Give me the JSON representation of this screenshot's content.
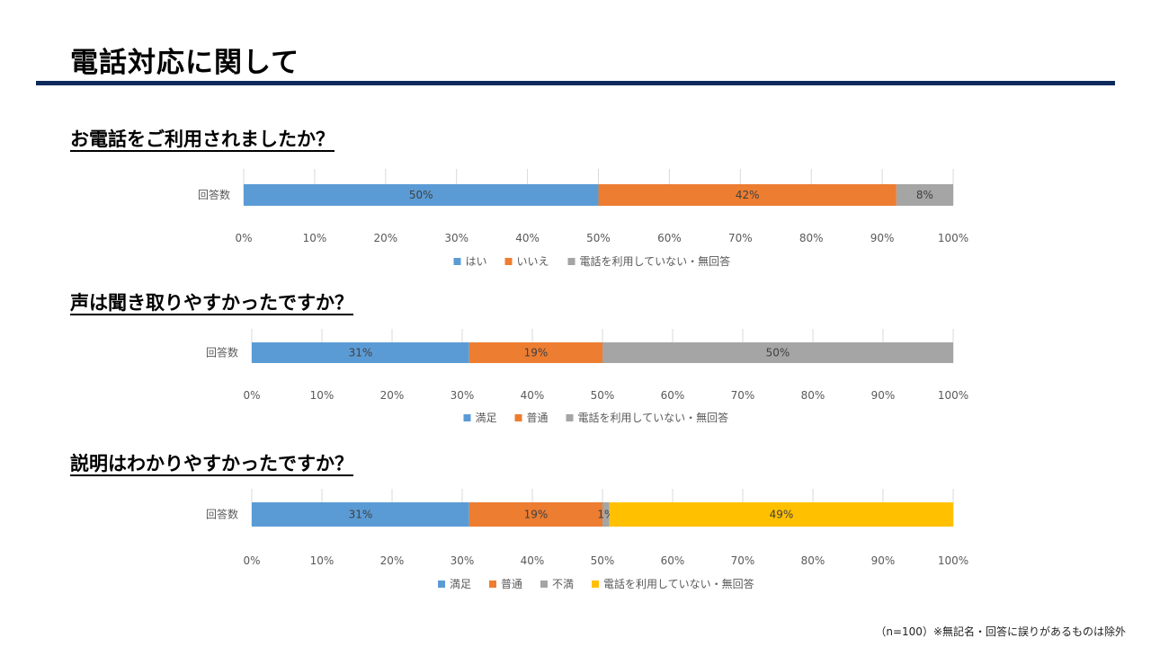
{
  "title": "電話対応に関して",
  "footnote": "（n=100）※無記名・回答に誤りがあるものは除外",
  "questions": [
    {
      "title": "お電話をご利用されましたか？",
      "chart_data": {
        "type": "bar",
        "orientation": "horizontal",
        "stacked": "percent",
        "categories": [
          "回答数"
        ],
        "series": [
          {
            "name": "はい",
            "values": [
              50
            ],
            "label": "50%",
            "color": "#5b9bd5"
          },
          {
            "name": "いいえ",
            "values": [
              42
            ],
            "label": "42%",
            "color": "#ed7d31"
          },
          {
            "name": "電話を利用していない・無回答",
            "values": [
              8
            ],
            "label": "8%",
            "color": "#a5a5a5"
          }
        ],
        "xlim": [
          0,
          100
        ],
        "xticks": [
          "0%",
          "10%",
          "20%",
          "30%",
          "40%",
          "50%",
          "60%",
          "70%",
          "80%",
          "90%",
          "100%"
        ],
        "grid": true,
        "legend": "bottom"
      }
    },
    {
      "title": "声は聞き取りやすかったですか？",
      "chart_data": {
        "type": "bar",
        "orientation": "horizontal",
        "stacked": "percent",
        "categories": [
          "回答数"
        ],
        "series": [
          {
            "name": "満足",
            "values": [
              31
            ],
            "label": "31%",
            "color": "#5b9bd5"
          },
          {
            "name": "普通",
            "values": [
              19
            ],
            "label": "19%",
            "color": "#ed7d31"
          },
          {
            "name": "電話を利用していない・無回答",
            "values": [
              50
            ],
            "label": "50%",
            "color": "#a5a5a5"
          }
        ],
        "xlim": [
          0,
          100
        ],
        "xticks": [
          "0%",
          "10%",
          "20%",
          "30%",
          "40%",
          "50%",
          "60%",
          "70%",
          "80%",
          "90%",
          "100%"
        ],
        "grid": true,
        "legend": "bottom"
      }
    },
    {
      "title": "説明はわかりやすかったですか？",
      "chart_data": {
        "type": "bar",
        "orientation": "horizontal",
        "stacked": "percent",
        "categories": [
          "回答数"
        ],
        "series": [
          {
            "name": "満足",
            "values": [
              31
            ],
            "label": "31%",
            "color": "#5b9bd5"
          },
          {
            "name": "普通",
            "values": [
              19
            ],
            "label": "19%",
            "color": "#ed7d31"
          },
          {
            "name": "不満",
            "values": [
              1
            ],
            "label": "1%",
            "color": "#a5a5a5"
          },
          {
            "name": "電話を利用していない・無回答",
            "values": [
              49
            ],
            "label": "49%",
            "color": "#ffc000"
          }
        ],
        "xlim": [
          0,
          100
        ],
        "xticks": [
          "0%",
          "10%",
          "20%",
          "30%",
          "40%",
          "50%",
          "60%",
          "70%",
          "80%",
          "90%",
          "100%"
        ],
        "grid": true,
        "legend": "bottom"
      }
    }
  ]
}
